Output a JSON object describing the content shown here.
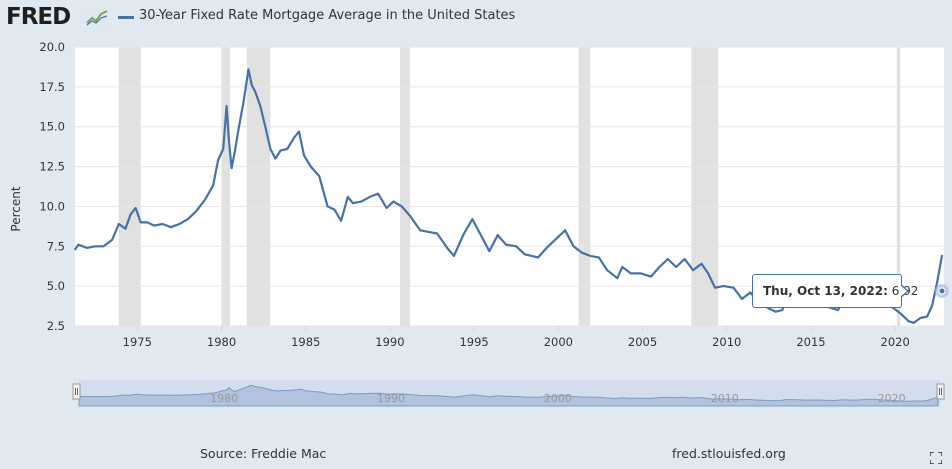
{
  "header": {
    "logo": "FRED",
    "series_title": "30-Year Fixed Rate Mortgage Average in the United States"
  },
  "footer": {
    "source": "Source: Freddie Mac",
    "url": "fred.stlouisfed.org"
  },
  "tooltip": {
    "date": "Thu, Oct 13, 2022:",
    "value": "6.92"
  },
  "colors": {
    "line": "#4572a7",
    "recession": "#e1e1e1",
    "background": "#e1e9f0",
    "plot_bg": "#ffffff",
    "grid": "#e6e6e6"
  },
  "icons": [
    "fred-logo-chart-icon",
    "legend-line-icon",
    "navigator-handle-left-icon",
    "navigator-handle-right-icon",
    "expand-icon"
  ],
  "chart_data": {
    "type": "line",
    "title": "30-Year Fixed Rate Mortgage Average in the United States",
    "ylabel": "Percent",
    "xlabel": "",
    "xlim": [
      1971.3,
      2022.9
    ],
    "ylim": [
      2.5,
      20.0
    ],
    "yticks": [
      "2.5",
      "5.0",
      "7.5",
      "10.0",
      "12.5",
      "15.0",
      "17.5",
      "20.0"
    ],
    "ytick_values": [
      2.5,
      5.0,
      7.5,
      10.0,
      12.5,
      15.0,
      17.5,
      20.0
    ],
    "xticks": [
      "1975",
      "1980",
      "1985",
      "1990",
      "1995",
      "2000",
      "2005",
      "2010",
      "2015",
      "2020"
    ],
    "xtick_values": [
      1975,
      1980,
      1985,
      1990,
      1995,
      2000,
      2005,
      2010,
      2015,
      2020
    ],
    "navigator_ticks": [
      "1980",
      "1990",
      "2000",
      "2010",
      "2020"
    ],
    "navigator_tick_values": [
      1980,
      1990,
      2000,
      2010,
      2020
    ],
    "recessions": [
      [
        1973.9,
        1975.2
      ],
      [
        1980.0,
        1980.5
      ],
      [
        1981.5,
        1982.9
      ],
      [
        1990.6,
        1991.2
      ],
      [
        2001.2,
        2001.9
      ],
      [
        2007.9,
        2009.5
      ],
      [
        2020.1,
        2020.3
      ]
    ],
    "grid": true,
    "legend": "top-left",
    "series": [
      {
        "name": "30-Year Fixed Rate Mortgage Average in the United States",
        "x": [
          1971.3,
          1971.5,
          1972.0,
          1972.5,
          1973.0,
          1973.5,
          1973.9,
          1974.3,
          1974.6,
          1974.9,
          1975.2,
          1975.6,
          1976.0,
          1976.5,
          1977.0,
          1977.5,
          1978.0,
          1978.5,
          1979.0,
          1979.5,
          1979.8,
          1980.1,
          1980.3,
          1980.45,
          1980.6,
          1980.8,
          1981.0,
          1981.3,
          1981.6,
          1981.8,
          1982.0,
          1982.3,
          1982.6,
          1982.9,
          1983.2,
          1983.5,
          1983.9,
          1984.3,
          1984.6,
          1984.9,
          1985.3,
          1985.8,
          1986.3,
          1986.7,
          1987.1,
          1987.5,
          1987.8,
          1988.3,
          1988.8,
          1989.3,
          1989.8,
          1990.2,
          1990.7,
          1991.2,
          1991.8,
          1992.3,
          1992.8,
          1993.4,
          1993.8,
          1994.4,
          1994.9,
          1995.4,
          1995.9,
          1996.4,
          1996.9,
          1997.5,
          1998.0,
          1998.8,
          1999.4,
          1999.9,
          2000.4,
          2000.9,
          2001.4,
          2001.9,
          2002.4,
          2002.9,
          2003.5,
          2003.8,
          2004.3,
          2004.9,
          2005.5,
          2006.0,
          2006.5,
          2007.0,
          2007.5,
          2008.0,
          2008.5,
          2008.9,
          2009.3,
          2009.8,
          2010.4,
          2010.9,
          2011.4,
          2011.9,
          2012.5,
          2012.9,
          2013.3,
          2013.7,
          2014.3,
          2014.9,
          2015.5,
          2016.0,
          2016.6,
          2017.0,
          2017.6,
          2018.0,
          2018.5,
          2018.9,
          2019.4,
          2019.8,
          2020.3,
          2020.8,
          2021.1,
          2021.5,
          2021.9,
          2022.2,
          2022.5,
          2022.78
        ],
        "y": [
          7.3,
          7.6,
          7.4,
          7.5,
          7.5,
          7.9,
          8.9,
          8.6,
          9.5,
          9.9,
          9.0,
          9.0,
          8.8,
          8.9,
          8.7,
          8.9,
          9.2,
          9.7,
          10.4,
          11.3,
          12.9,
          13.6,
          16.3,
          14.0,
          12.4,
          13.5,
          14.8,
          16.5,
          18.6,
          17.6,
          17.2,
          16.3,
          15.0,
          13.6,
          13.0,
          13.5,
          13.6,
          14.3,
          14.7,
          13.2,
          12.5,
          11.9,
          10.0,
          9.8,
          9.1,
          10.6,
          10.2,
          10.3,
          10.6,
          10.8,
          9.9,
          10.3,
          10.0,
          9.4,
          8.5,
          8.4,
          8.3,
          7.4,
          6.9,
          8.3,
          9.2,
          8.2,
          7.2,
          8.2,
          7.6,
          7.5,
          7.0,
          6.8,
          7.5,
          8.0,
          8.5,
          7.5,
          7.1,
          6.9,
          6.8,
          6.0,
          5.5,
          6.2,
          5.8,
          5.8,
          5.6,
          6.2,
          6.7,
          6.2,
          6.7,
          6.0,
          6.4,
          5.8,
          4.9,
          5.0,
          4.9,
          4.2,
          4.6,
          4.0,
          3.6,
          3.4,
          3.5,
          4.5,
          4.3,
          3.9,
          4.0,
          3.7,
          3.5,
          4.2,
          3.9,
          4.0,
          4.6,
          4.9,
          4.1,
          3.7,
          3.3,
          2.8,
          2.7,
          3.0,
          3.1,
          3.8,
          5.3,
          6.92
        ]
      }
    ]
  }
}
